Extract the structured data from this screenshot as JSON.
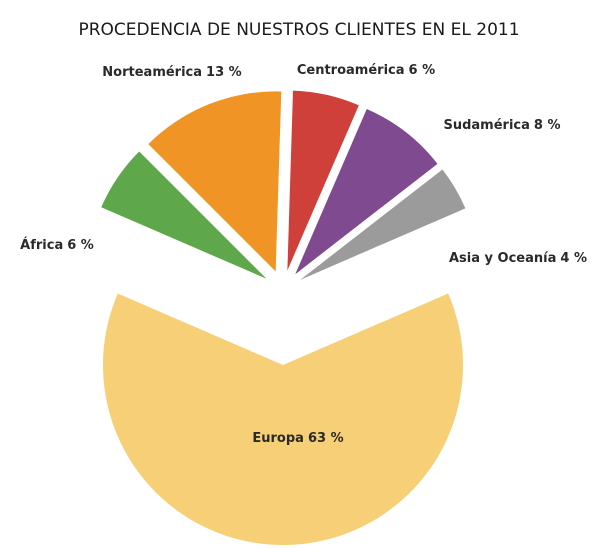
{
  "chart_data": {
    "type": "pie",
    "title": "PROCEDENCIA DE NUESTROS CLIENTES EN EL 2011",
    "categories": [
      "Europa",
      "África",
      "Norteamérica",
      "Centroamérica",
      "Sudamérica",
      "Asia y Oceanía"
    ],
    "values": [
      63,
      6,
      13,
      6,
      8,
      4
    ],
    "value_labels": [
      "63 %",
      "6 %",
      "13 %",
      "6 %",
      "8 %",
      "4 %"
    ],
    "colors": [
      "#f6cf76",
      "#5ea84b",
      "#ef9425",
      "#cf403a",
      "#7f4a8f",
      "#9b9b9b"
    ]
  }
}
